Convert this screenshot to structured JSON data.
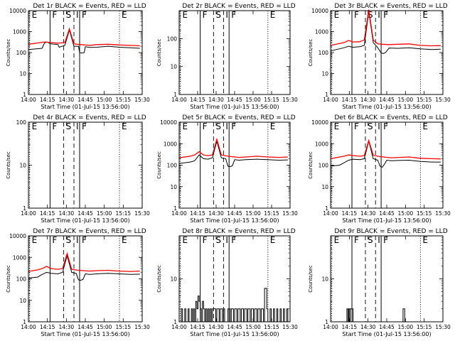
{
  "chart_data": [
    {
      "type": "line",
      "title": "Det 1r BLACK = Events, RED = LLD",
      "xlabel": "Start Time (01-Jul-15 13:56:00)",
      "ylabel": "Counts/sec",
      "xlim": [
        0,
        100
      ],
      "ylim": [
        1,
        10000
      ],
      "yscale": "log",
      "yticks": [
        "1",
        "10",
        "100",
        "1000",
        "10000"
      ],
      "xtick_labels": [
        "14:00",
        "14:15",
        "14:30",
        "14:45",
        "15:00",
        "15:15",
        "15:30"
      ],
      "markers": [
        {
          "label": "E",
          "x": 1,
          "style": "dotted"
        },
        {
          "label": "F",
          "x": 19,
          "style": "solid"
        },
        {
          "label": "S",
          "x": 31,
          "style": "dashed"
        },
        {
          "label": "I",
          "x": 40,
          "style": "dashed"
        },
        {
          "label": "F",
          "x": 45,
          "style": "solid"
        },
        {
          "label": "E",
          "x": 80,
          "style": "dotted"
        }
      ],
      "series": [
        {
          "color": "#000000",
          "x": [
            0,
            12,
            14,
            16,
            20,
            26,
            27,
            32,
            36,
            40,
            44,
            45,
            47,
            49,
            50,
            54,
            60,
            70,
            80,
            90,
            98
          ],
          "y": [
            140,
            160,
            280,
            320,
            260,
            240,
            180,
            220,
            1200,
            200,
            200,
            100,
            95,
            100,
            190,
            175,
            180,
            200,
            180,
            170,
            160
          ]
        },
        {
          "color": "#ff0000",
          "x": [
            0,
            14,
            20,
            26,
            32,
            36,
            40,
            46,
            54,
            60,
            70,
            80,
            90,
            98
          ],
          "y": [
            250,
            320,
            300,
            280,
            300,
            1350,
            260,
            240,
            220,
            240,
            250,
            230,
            220,
            210
          ]
        }
      ]
    },
    {
      "type": "line",
      "title": "Det 2r BLACK = Events, RED = LLD",
      "xlabel": "Start Time (01-Jul-15 13:56:00)",
      "ylabel": "Counts/sec",
      "xlim": [
        0,
        100
      ],
      "ylim": [
        1,
        1000
      ],
      "yscale": "log",
      "yticks": [
        "1",
        "10",
        "100"
      ],
      "xtick_labels": [
        "14:00",
        "14:15",
        "14:30",
        "14:45",
        "15:00",
        "15:15",
        "15:30"
      ],
      "markers": [
        {
          "label": "E",
          "x": 1,
          "style": "dotted"
        },
        {
          "label": "F",
          "x": 19,
          "style": "solid"
        },
        {
          "label": "S",
          "x": 31,
          "style": "dashed"
        },
        {
          "label": "I",
          "x": 40,
          "style": "dashed"
        },
        {
          "label": "F",
          "x": 45,
          "style": "solid"
        },
        {
          "label": "E",
          "x": 80,
          "style": "dotted"
        }
      ],
      "series": []
    },
    {
      "type": "line",
      "title": "Det 3r BLACK = Events, RED = LLD",
      "xlabel": "Start Time (01-Jul-15 13:56:00)",
      "ylabel": "Counts/sec",
      "xlim": [
        0,
        100
      ],
      "ylim": [
        1,
        10000
      ],
      "yscale": "log",
      "yticks": [
        "1",
        "10",
        "100",
        "1000",
        "10000"
      ],
      "xtick_labels": [
        "14:00",
        "14:15",
        "14:30",
        "14:45",
        "15:00",
        "15:15",
        "15:30"
      ],
      "markers": [
        {
          "label": "E",
          "x": 1,
          "style": "dotted"
        },
        {
          "label": "F",
          "x": 19,
          "style": "solid"
        },
        {
          "label": "S",
          "x": 31,
          "style": "dashed"
        },
        {
          "label": "I",
          "x": 40,
          "style": "dashed"
        },
        {
          "label": "F",
          "x": 45,
          "style": "solid"
        },
        {
          "label": "E",
          "x": 80,
          "style": "dotted"
        }
      ],
      "series": [
        {
          "color": "#000000",
          "x": [
            0,
            12,
            16,
            20,
            26,
            30,
            34,
            38,
            42,
            45,
            47,
            49,
            52,
            60,
            70,
            80,
            90,
            98
          ],
          "y": [
            120,
            170,
            200,
            180,
            190,
            220,
            9000,
            300,
            170,
            95,
            90,
            100,
            165,
            160,
            170,
            150,
            140,
            145
          ]
        },
        {
          "color": "#ff0000",
          "x": [
            0,
            12,
            16,
            20,
            26,
            30,
            34,
            38,
            42,
            46,
            52,
            60,
            70,
            80,
            90,
            98
          ],
          "y": [
            220,
            300,
            380,
            320,
            330,
            400,
            11000,
            400,
            260,
            250,
            240,
            250,
            260,
            220,
            210,
            215
          ]
        }
      ]
    },
    {
      "type": "line",
      "title": "Det 4r BLACK = Events, RED = LLD",
      "xlabel": "Start Time (01-Jul-15 13:56:00)",
      "ylabel": "Counts/sec",
      "xlim": [
        0,
        100
      ],
      "ylim": [
        1,
        100
      ],
      "yscale": "log",
      "yticks": [
        "1",
        "10",
        "100"
      ],
      "xtick_labels": [
        "14:00",
        "14:15",
        "14:30",
        "14:45",
        "15:00",
        "15:15",
        "15:30"
      ],
      "markers": [
        {
          "label": "E",
          "x": 1,
          "style": "dotted"
        },
        {
          "label": "F",
          "x": 19,
          "style": "solid"
        },
        {
          "label": "S",
          "x": 31,
          "style": "dashed"
        },
        {
          "label": "I",
          "x": 40,
          "style": "dashed"
        },
        {
          "label": "F",
          "x": 45,
          "style": "solid"
        },
        {
          "label": "E",
          "x": 80,
          "style": "dotted"
        }
      ],
      "series": []
    },
    {
      "type": "line",
      "title": "Det 5r BLACK = Events, RED = LLD",
      "xlabel": "Start Time (01-Jul-15 13:56:00)",
      "ylabel": "Counts/sec",
      "xlim": [
        0,
        100
      ],
      "ylim": [
        1,
        10000
      ],
      "yscale": "log",
      "yticks": [
        "1",
        "10",
        "100",
        "1000",
        "10000"
      ],
      "xtick_labels": [
        "14:00",
        "14:15",
        "14:30",
        "14:45",
        "15:00",
        "15:15",
        "15:30"
      ],
      "markers": [
        {
          "label": "E",
          "x": 1,
          "style": "dotted"
        },
        {
          "label": "F",
          "x": 19,
          "style": "solid"
        },
        {
          "label": "S",
          "x": 31,
          "style": "dashed"
        },
        {
          "label": "I",
          "x": 40,
          "style": "dashed"
        },
        {
          "label": "F",
          "x": 45,
          "style": "solid"
        },
        {
          "label": "E",
          "x": 80,
          "style": "dotted"
        }
      ],
      "series": [
        {
          "color": "#000000",
          "x": [
            0,
            10,
            14,
            18,
            22,
            26,
            30,
            34,
            38,
            42,
            44,
            46,
            48,
            50,
            54,
            60,
            70,
            80,
            90,
            98
          ],
          "y": [
            120,
            140,
            160,
            300,
            200,
            190,
            220,
            1300,
            220,
            200,
            90,
            85,
            95,
            180,
            170,
            180,
            190,
            180,
            170,
            175
          ]
        },
        {
          "color": "#ff0000",
          "x": [
            0,
            10,
            14,
            18,
            22,
            26,
            30,
            34,
            38,
            44,
            54,
            60,
            70,
            80,
            90,
            98
          ],
          "y": [
            220,
            260,
            300,
            420,
            300,
            280,
            300,
            1600,
            300,
            260,
            230,
            240,
            260,
            240,
            230,
            240
          ]
        }
      ]
    },
    {
      "type": "line",
      "title": "Det 6r BLACK = Events, RED = LLD",
      "xlabel": "Start Time (01-Jul-15 13:56:00)",
      "ylabel": "Counts/sec",
      "xlim": [
        0,
        100
      ],
      "ylim": [
        1,
        10000
      ],
      "yscale": "log",
      "yticks": [
        "1",
        "10",
        "100",
        "1000",
        "10000"
      ],
      "xtick_labels": [
        "14:00",
        "14:15",
        "14:30",
        "14:45",
        "15:00",
        "15:15",
        "15:30"
      ],
      "markers": [
        {
          "label": "E",
          "x": 1,
          "style": "dotted"
        },
        {
          "label": "F",
          "x": 19,
          "style": "solid"
        },
        {
          "label": "S",
          "x": 31,
          "style": "dashed"
        },
        {
          "label": "I",
          "x": 40,
          "style": "dashed"
        },
        {
          "label": "F",
          "x": 45,
          "style": "solid"
        },
        {
          "label": "E",
          "x": 80,
          "style": "dotted"
        }
      ],
      "series": [
        {
          "color": "#000000",
          "x": [
            0,
            8,
            12,
            16,
            20,
            26,
            30,
            34,
            38,
            42,
            44,
            46,
            48,
            50,
            54,
            60,
            70,
            80,
            90,
            98
          ],
          "y": [
            90,
            100,
            130,
            170,
            190,
            180,
            200,
            1300,
            200,
            170,
            90,
            80,
            110,
            170,
            160,
            165,
            170,
            150,
            140,
            140
          ]
        },
        {
          "color": "#ff0000",
          "x": [
            0,
            12,
            16,
            20,
            26,
            30,
            34,
            38,
            44,
            54,
            60,
            70,
            80,
            90,
            98
          ],
          "y": [
            200,
            260,
            300,
            280,
            260,
            280,
            1400,
            290,
            250,
            220,
            230,
            240,
            210,
            200,
            195
          ]
        }
      ]
    },
    {
      "type": "line",
      "title": "Det 7r BLACK = Events, RED = LLD",
      "xlabel": "Start Time (01-Jul-15 13:56:00)",
      "ylabel": "Counts/sec",
      "xlim": [
        0,
        100
      ],
      "ylim": [
        1,
        10000
      ],
      "yscale": "log",
      "yticks": [
        "1",
        "10",
        "100",
        "1000",
        "10000"
      ],
      "xtick_labels": [
        "14:00",
        "14:15",
        "14:30",
        "14:45",
        "15:00",
        "15:15",
        "15:30"
      ],
      "markers": [
        {
          "label": "E",
          "x": 1,
          "style": "dotted"
        },
        {
          "label": "F",
          "x": 19,
          "style": "solid"
        },
        {
          "label": "S",
          "x": 31,
          "style": "dashed"
        },
        {
          "label": "I",
          "x": 40,
          "style": "dashed"
        },
        {
          "label": "F",
          "x": 45,
          "style": "solid"
        },
        {
          "label": "E",
          "x": 80,
          "style": "dotted"
        }
      ],
      "series": [
        {
          "color": "#000000",
          "x": [
            0,
            8,
            12,
            16,
            20,
            26,
            30,
            34,
            38,
            42,
            44,
            46,
            48,
            50,
            54,
            60,
            70,
            80,
            90,
            98
          ],
          "y": [
            110,
            120,
            160,
            200,
            180,
            170,
            200,
            1200,
            200,
            180,
            90,
            85,
            95,
            170,
            160,
            170,
            180,
            170,
            160,
            165
          ]
        },
        {
          "color": "#ff0000",
          "x": [
            0,
            8,
            12,
            16,
            20,
            26,
            30,
            34,
            38,
            44,
            54,
            60,
            70,
            80,
            90,
            98
          ],
          "y": [
            220,
            260,
            300,
            380,
            300,
            280,
            300,
            1500,
            280,
            250,
            230,
            240,
            250,
            230,
            220,
            230
          ]
        }
      ]
    },
    {
      "type": "line",
      "title": "Det 8r BLACK = Events, RED = LLD",
      "xlabel": "Start Time (01-Jul-15 13:56:00)",
      "ylabel": "Counts/sec",
      "xlim": [
        0,
        100
      ],
      "ylim": [
        1,
        100
      ],
      "yscale": "log",
      "yticks": [
        "1",
        "10"
      ],
      "xtick_labels": [
        "14:00",
        "14:15",
        "14:30",
        "14:45",
        "15:00",
        "15:15",
        "15:30"
      ],
      "markers": [
        {
          "label": "E",
          "x": 1,
          "style": "dotted"
        },
        {
          "label": "F",
          "x": 19,
          "style": "solid"
        },
        {
          "label": "S",
          "x": 31,
          "style": "dashed"
        },
        {
          "label": "I",
          "x": 40,
          "style": "dashed"
        },
        {
          "label": "F",
          "x": 45,
          "style": "solid"
        },
        {
          "label": "E",
          "x": 80,
          "style": "dotted"
        }
      ],
      "series": [
        {
          "color": "#000000",
          "step": true,
          "x": [
            0,
            2,
            3,
            5,
            6,
            8,
            9,
            11,
            12,
            13,
            14,
            15,
            16,
            17,
            18,
            19,
            20,
            21,
            22,
            23,
            24,
            25,
            26,
            27,
            28,
            29,
            30,
            33,
            34,
            36,
            37,
            39,
            40,
            41,
            44,
            46,
            47,
            49,
            50,
            52,
            53,
            55,
            56,
            58,
            59,
            61,
            62,
            64,
            65,
            67,
            68,
            70,
            71,
            73,
            74,
            76,
            77,
            79,
            80,
            82,
            83,
            85,
            86,
            88,
            89,
            91,
            92,
            94,
            95,
            97,
            98
          ],
          "y": [
            1,
            2,
            1,
            2,
            1,
            2,
            1,
            2,
            1,
            2,
            1,
            3,
            2,
            4,
            3,
            2,
            1,
            3,
            2,
            1,
            2,
            1,
            2,
            1,
            2,
            1,
            2,
            1,
            2,
            1,
            2,
            1,
            2,
            1,
            2,
            1,
            2,
            1,
            2,
            1,
            2,
            1,
            2,
            1,
            2,
            1,
            2,
            1,
            2,
            1,
            2,
            1,
            2,
            1,
            2,
            1,
            6,
            2,
            1,
            2,
            1,
            2,
            1,
            2,
            1,
            2,
            1,
            2,
            1,
            2,
            1
          ]
        }
      ]
    },
    {
      "type": "line",
      "title": "Det 9r BLACK = Events, RED = LLD",
      "xlabel": "Start Time (01-Jul-15 13:56:00)",
      "ylabel": "Counts/sec",
      "xlim": [
        0,
        100
      ],
      "ylim": [
        1,
        100
      ],
      "yscale": "log",
      "yticks": [
        "1",
        "10"
      ],
      "xtick_labels": [
        "14:00",
        "14:15",
        "14:30",
        "14:45",
        "15:00",
        "15:15",
        "15:30"
      ],
      "markers": [
        {
          "label": "E",
          "x": 1,
          "style": "dotted"
        },
        {
          "label": "F",
          "x": 19,
          "style": "solid"
        },
        {
          "label": "S",
          "x": 31,
          "style": "dashed"
        },
        {
          "label": "I",
          "x": 40,
          "style": "dashed"
        },
        {
          "label": "F",
          "x": 45,
          "style": "solid"
        },
        {
          "label": "E",
          "x": 80,
          "style": "dotted"
        }
      ],
      "series": [
        {
          "color": "#000000",
          "step": true,
          "x": [
            0,
            14,
            14.5,
            15.5,
            16,
            17,
            17.5,
            20,
            64,
            64.5,
            66,
            100
          ],
          "y": [
            1,
            1,
            2,
            1,
            2,
            1,
            2,
            1,
            1,
            2,
            1,
            1
          ]
        }
      ]
    }
  ]
}
